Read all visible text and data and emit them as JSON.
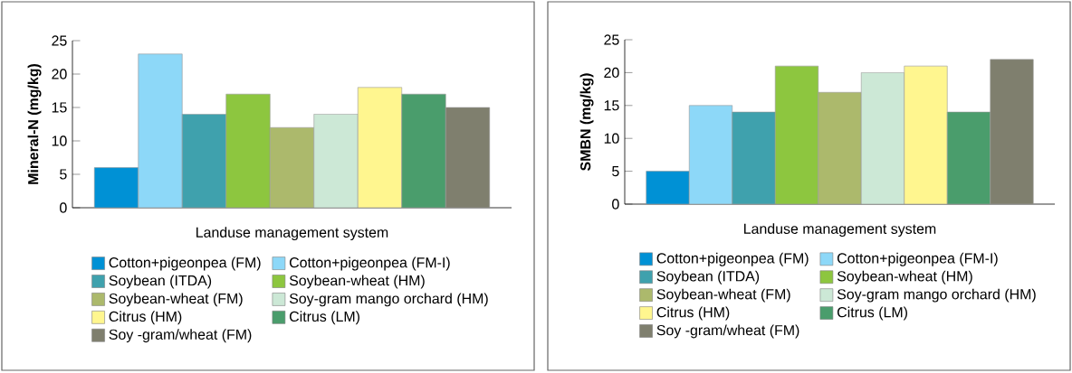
{
  "chart_data": [
    {
      "type": "bar",
      "xlabel": "Landuse management system",
      "ylabel": "Mineral-N (mg/kg)",
      "categories": [
        null
      ],
      "ylim": [
        0,
        25
      ],
      "yticks": [
        0,
        5,
        10,
        15,
        20,
        25
      ],
      "legend": "bottom",
      "series": [
        {
          "name": "Cotton+pigeonpea (FM)",
          "color": "#0091d5",
          "values": [
            6
          ]
        },
        {
          "name": "Cotton+pigeonpea (FM-I)",
          "color": "#8dd8f8",
          "values": [
            23
          ]
        },
        {
          "name": "Soybean (ITDA)",
          "color": "#3fa1ad",
          "values": [
            14
          ]
        },
        {
          "name": "Soybean-wheat (HM)",
          "color": "#8dc63f",
          "values": [
            17
          ]
        },
        {
          "name": "Soybean-wheat (FM)",
          "color": "#acb96c",
          "values": [
            12
          ]
        },
        {
          "name": "Soy-gram mango orchard (HM)",
          "color": "#cce8d6",
          "values": [
            14
          ]
        },
        {
          "name": "Citrus (HM)",
          "color": "#fff68f",
          "values": [
            18
          ]
        },
        {
          "name": "Citrus (LM)",
          "color": "#4a9d6c",
          "values": [
            17
          ]
        },
        {
          "name": "Soy -gram/wheat (FM)",
          "color": "#7f7f6e",
          "values": [
            15
          ]
        }
      ]
    },
    {
      "type": "bar",
      "xlabel": "Landuse management system",
      "ylabel": "SMBN (mg/kg)",
      "categories": [
        null
      ],
      "ylim": [
        0,
        25
      ],
      "yticks": [
        0,
        5,
        10,
        15,
        20,
        25
      ],
      "legend": "bottom",
      "series": [
        {
          "name": "Cotton+pigeonpea (FM)",
          "color": "#0091d5",
          "values": [
            5
          ]
        },
        {
          "name": "Cotton+pigeonpea (FM-I)",
          "color": "#8dd8f8",
          "values": [
            15
          ]
        },
        {
          "name": "Soybean (ITDA)",
          "color": "#3fa1ad",
          "values": [
            14
          ]
        },
        {
          "name": "Soybean-wheat (HM)",
          "color": "#8dc63f",
          "values": [
            21
          ]
        },
        {
          "name": "Soybean-wheat (FM)",
          "color": "#acb96c",
          "values": [
            17
          ]
        },
        {
          "name": "Soy-gram mango orchard (HM)",
          "color": "#cce8d6",
          "values": [
            20
          ]
        },
        {
          "name": "Citrus (HM)",
          "color": "#fff68f",
          "values": [
            21
          ]
        },
        {
          "name": "Citrus (LM)",
          "color": "#4a9d6c",
          "values": [
            14
          ]
        },
        {
          "name": "Soy -gram/wheat (FM)",
          "color": "#7f7f6e",
          "values": [
            22
          ]
        }
      ]
    }
  ]
}
